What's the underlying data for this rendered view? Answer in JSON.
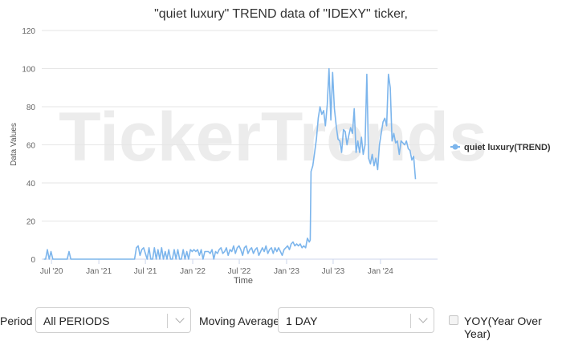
{
  "chart_data": {
    "type": "line",
    "title": "\"quiet luxury\" TREND data of \"IDEXY\" ticker,",
    "xlabel": "Time",
    "ylabel": "Data Values",
    "ylim": [
      0,
      120
    ],
    "yticks": [
      0,
      20,
      40,
      60,
      80,
      100,
      120
    ],
    "xlim": [
      "2020-05-24",
      "2024-08-10"
    ],
    "xticks": [
      {
        "date": "2020-07-01",
        "label": "Jul '20"
      },
      {
        "date": "2021-01-01",
        "label": "Jan '21"
      },
      {
        "date": "2021-07-01",
        "label": "Jul '21"
      },
      {
        "date": "2022-01-01",
        "label": "Jan '22"
      },
      {
        "date": "2022-07-01",
        "label": "Jul '22"
      },
      {
        "date": "2023-01-01",
        "label": "Jan '23"
      },
      {
        "date": "2023-07-01",
        "label": "Jul '23"
      },
      {
        "date": "2024-01-01",
        "label": "Jan '24"
      }
    ],
    "grid": true,
    "legend_position": "right",
    "watermark": "TickerTrends",
    "series": [
      {
        "name": "quiet luxury(TREND)",
        "color": "#7cb5ec",
        "points": [
          [
            "2020-06-01",
            0
          ],
          [
            "2020-06-08",
            0
          ],
          [
            "2020-06-15",
            5
          ],
          [
            "2020-06-22",
            0
          ],
          [
            "2020-06-29",
            4
          ],
          [
            "2020-07-06",
            0
          ],
          [
            "2020-07-13",
            0
          ],
          [
            "2020-07-20",
            0
          ],
          [
            "2020-07-27",
            0
          ],
          [
            "2020-08-03",
            0
          ],
          [
            "2020-08-10",
            0
          ],
          [
            "2020-08-17",
            0
          ],
          [
            "2020-08-24",
            0
          ],
          [
            "2020-08-31",
            0
          ],
          [
            "2020-09-07",
            4
          ],
          [
            "2020-09-14",
            0
          ],
          [
            "2020-10-01",
            0
          ],
          [
            "2020-11-01",
            0
          ],
          [
            "2020-12-01",
            0
          ],
          [
            "2021-01-01",
            0
          ],
          [
            "2021-02-01",
            0
          ],
          [
            "2021-03-01",
            0
          ],
          [
            "2021-04-01",
            0
          ],
          [
            "2021-05-01",
            0
          ],
          [
            "2021-05-20",
            0
          ],
          [
            "2021-05-27",
            6
          ],
          [
            "2021-06-03",
            7
          ],
          [
            "2021-06-10",
            2
          ],
          [
            "2021-06-17",
            5
          ],
          [
            "2021-06-24",
            6
          ],
          [
            "2021-07-01",
            3
          ],
          [
            "2021-07-08",
            0
          ],
          [
            "2021-07-15",
            6
          ],
          [
            "2021-07-22",
            0
          ],
          [
            "2021-07-29",
            0
          ],
          [
            "2021-08-05",
            6
          ],
          [
            "2021-08-12",
            0
          ],
          [
            "2021-08-19",
            5
          ],
          [
            "2021-08-26",
            0
          ],
          [
            "2021-09-02",
            6
          ],
          [
            "2021-09-09",
            0
          ],
          [
            "2021-09-16",
            4
          ],
          [
            "2021-09-23",
            0
          ],
          [
            "2021-09-30",
            5
          ],
          [
            "2021-10-07",
            0
          ],
          [
            "2021-10-14",
            0
          ],
          [
            "2021-10-21",
            5
          ],
          [
            "2021-10-28",
            0
          ],
          [
            "2021-11-04",
            5
          ],
          [
            "2021-11-11",
            0
          ],
          [
            "2021-11-18",
            0
          ],
          [
            "2021-11-25",
            5
          ],
          [
            "2021-12-02",
            0
          ],
          [
            "2021-12-09",
            4
          ],
          [
            "2021-12-16",
            0
          ],
          [
            "2021-12-23",
            5
          ],
          [
            "2021-12-30",
            4
          ],
          [
            "2022-01-06",
            5
          ],
          [
            "2022-01-13",
            4
          ],
          [
            "2022-01-20",
            5
          ],
          [
            "2022-01-27",
            2
          ],
          [
            "2022-02-03",
            5
          ],
          [
            "2022-02-10",
            0
          ],
          [
            "2022-02-17",
            4
          ],
          [
            "2022-02-24",
            4
          ],
          [
            "2022-03-03",
            4
          ],
          [
            "2022-03-10",
            3
          ],
          [
            "2022-03-17",
            5
          ],
          [
            "2022-03-24",
            0
          ],
          [
            "2022-03-31",
            4
          ],
          [
            "2022-04-07",
            3
          ],
          [
            "2022-04-14",
            5
          ],
          [
            "2022-04-21",
            6
          ],
          [
            "2022-04-28",
            3
          ],
          [
            "2022-05-05",
            4
          ],
          [
            "2022-05-12",
            6
          ],
          [
            "2022-05-19",
            2
          ],
          [
            "2022-05-26",
            5
          ],
          [
            "2022-06-02",
            4
          ],
          [
            "2022-06-09",
            7
          ],
          [
            "2022-06-16",
            3
          ],
          [
            "2022-06-23",
            6
          ],
          [
            "2022-06-30",
            7
          ],
          [
            "2022-07-07",
            5
          ],
          [
            "2022-07-14",
            2
          ],
          [
            "2022-07-21",
            6
          ],
          [
            "2022-07-28",
            7
          ],
          [
            "2022-08-04",
            3
          ],
          [
            "2022-08-11",
            5
          ],
          [
            "2022-08-18",
            6
          ],
          [
            "2022-08-25",
            3
          ],
          [
            "2022-09-01",
            5
          ],
          [
            "2022-09-08",
            6
          ],
          [
            "2022-09-15",
            2
          ],
          [
            "2022-09-22",
            4
          ],
          [
            "2022-09-29",
            6
          ],
          [
            "2022-10-06",
            4
          ],
          [
            "2022-10-13",
            7
          ],
          [
            "2022-10-20",
            3
          ],
          [
            "2022-10-27",
            5
          ],
          [
            "2022-11-03",
            6
          ],
          [
            "2022-11-10",
            3
          ],
          [
            "2022-11-17",
            6
          ],
          [
            "2022-11-24",
            4
          ],
          [
            "2022-12-01",
            6
          ],
          [
            "2022-12-08",
            4
          ],
          [
            "2022-12-15",
            2
          ],
          [
            "2022-12-22",
            5
          ],
          [
            "2022-12-29",
            6
          ],
          [
            "2023-01-05",
            7
          ],
          [
            "2023-01-12",
            5
          ],
          [
            "2023-01-19",
            8
          ],
          [
            "2023-01-26",
            9
          ],
          [
            "2023-02-02",
            7
          ],
          [
            "2023-02-09",
            8
          ],
          [
            "2023-02-16",
            7
          ],
          [
            "2023-02-23",
            8
          ],
          [
            "2023-03-02",
            6
          ],
          [
            "2023-03-09",
            7
          ],
          [
            "2023-03-16",
            6
          ],
          [
            "2023-03-23",
            11
          ],
          [
            "2023-03-30",
            9
          ],
          [
            "2023-04-03",
            10
          ],
          [
            "2023-04-06",
            46
          ],
          [
            "2023-04-13",
            49
          ],
          [
            "2023-04-20",
            56
          ],
          [
            "2023-04-27",
            63
          ],
          [
            "2023-05-04",
            74
          ],
          [
            "2023-05-11",
            80
          ],
          [
            "2023-05-18",
            76
          ],
          [
            "2023-05-25",
            78
          ],
          [
            "2023-06-01",
            70
          ],
          [
            "2023-06-08",
            81
          ],
          [
            "2023-06-15",
            100
          ],
          [
            "2023-06-22",
            73
          ],
          [
            "2023-06-29",
            98
          ],
          [
            "2023-07-06",
            79
          ],
          [
            "2023-07-13",
            70
          ],
          [
            "2023-07-20",
            63
          ],
          [
            "2023-07-27",
            62
          ],
          [
            "2023-08-03",
            56
          ],
          [
            "2023-08-10",
            68
          ],
          [
            "2023-08-17",
            67
          ],
          [
            "2023-08-24",
            60
          ],
          [
            "2023-08-31",
            65
          ],
          [
            "2023-09-07",
            69
          ],
          [
            "2023-09-14",
            66
          ],
          [
            "2023-09-21",
            79
          ],
          [
            "2023-09-28",
            56
          ],
          [
            "2023-10-05",
            62
          ],
          [
            "2023-10-12",
            56
          ],
          [
            "2023-10-19",
            64
          ],
          [
            "2023-10-26",
            55
          ],
          [
            "2023-11-02",
            60
          ],
          [
            "2023-11-09",
            97
          ],
          [
            "2023-11-16",
            53
          ],
          [
            "2023-11-23",
            50
          ],
          [
            "2023-11-30",
            55
          ],
          [
            "2023-12-07",
            49
          ],
          [
            "2023-12-14",
            53
          ],
          [
            "2023-12-21",
            47
          ],
          [
            "2023-12-28",
            60
          ],
          [
            "2024-01-04",
            66
          ],
          [
            "2024-01-11",
            72
          ],
          [
            "2024-01-18",
            74
          ],
          [
            "2024-01-25",
            70
          ],
          [
            "2024-02-01",
            97
          ],
          [
            "2024-02-08",
            90
          ],
          [
            "2024-02-15",
            62
          ],
          [
            "2024-02-22",
            66
          ],
          [
            "2024-02-29",
            61
          ],
          [
            "2024-03-07",
            62
          ],
          [
            "2024-03-14",
            55
          ],
          [
            "2024-03-21",
            62
          ],
          [
            "2024-03-28",
            61
          ],
          [
            "2024-04-04",
            60
          ],
          [
            "2024-04-11",
            62
          ],
          [
            "2024-04-18",
            58
          ],
          [
            "2024-04-25",
            57
          ],
          [
            "2024-05-02",
            52
          ],
          [
            "2024-05-09",
            54
          ],
          [
            "2024-05-16",
            42
          ]
        ]
      }
    ]
  },
  "controls": {
    "period_label": "Period",
    "period_value": "All PERIODS",
    "moving_average_label": "Moving Average",
    "moving_average_value": "1 DAY",
    "yoy_label": "YOY(Year Over Year)",
    "yoy_checked": false
  }
}
